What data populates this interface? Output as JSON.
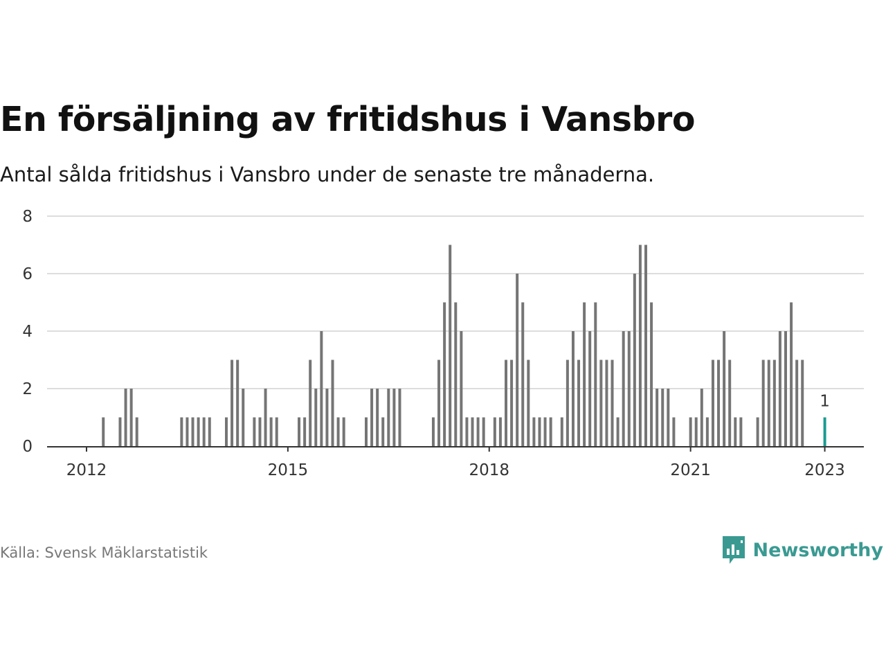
{
  "title": "En försäljning av fritidshus i Vansbro",
  "subtitle": "Antal sålda fritidshus i Vansbro under de senaste tre månaderna.",
  "source": "Källa: Svensk Mäklarstatistik",
  "brand": {
    "name": "Newsworthy",
    "icon": "newsworthy-logo-icon",
    "color": "#3a9a92"
  },
  "colors": {
    "bar": "#757575",
    "highlight": "#1a9a91",
    "grid": "#dddddd",
    "axis": "#333333"
  },
  "chart_data": {
    "type": "bar",
    "x_start": "2012-01",
    "frequency": "monthly",
    "ylim": [
      0,
      8
    ],
    "yticks": [
      0,
      2,
      4,
      6,
      8
    ],
    "xticks": [
      "2012",
      "2015",
      "2018",
      "2021",
      "2023"
    ],
    "grid": true,
    "highlight_last": true,
    "last_value_label": "1",
    "values": [
      0,
      0,
      0,
      1,
      0,
      0,
      1,
      2,
      2,
      1,
      0,
      0,
      0,
      0,
      0,
      0,
      0,
      1,
      1,
      1,
      1,
      1,
      1,
      0,
      0,
      1,
      3,
      3,
      2,
      0,
      1,
      1,
      2,
      1,
      1,
      0,
      0,
      0,
      1,
      1,
      3,
      2,
      4,
      2,
      3,
      1,
      1,
      0,
      0,
      0,
      1,
      2,
      2,
      1,
      2,
      2,
      2,
      0,
      0,
      0,
      0,
      0,
      1,
      3,
      5,
      7,
      5,
      4,
      1,
      1,
      1,
      1,
      0,
      1,
      1,
      3,
      3,
      6,
      5,
      3,
      1,
      1,
      1,
      1,
      0,
      1,
      3,
      4,
      3,
      5,
      4,
      5,
      3,
      3,
      3,
      1,
      4,
      4,
      6,
      7,
      7,
      5,
      2,
      2,
      2,
      1,
      0,
      0,
      1,
      1,
      2,
      1,
      3,
      3,
      4,
      3,
      1,
      1,
      0,
      0,
      1,
      3,
      3,
      3,
      4,
      4,
      5,
      3,
      3,
      0,
      0,
      0,
      1
    ]
  }
}
